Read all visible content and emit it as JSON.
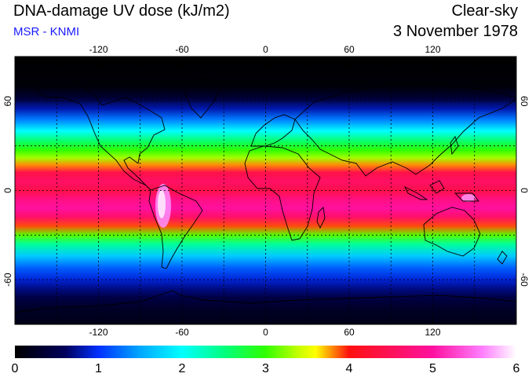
{
  "header": {
    "title": "DNA-damage UV dose (kJ/m2)",
    "subtitle": "MSR - KNMI",
    "sky_condition": "Clear-sky",
    "date": "3 November 1978"
  },
  "map": {
    "projection": "equirectangular",
    "lon_range": [
      -180,
      180
    ],
    "lat_range": [
      -90,
      90
    ],
    "lon_ticks": [
      -120,
      -60,
      0,
      60,
      120
    ],
    "lat_ticks": [
      60,
      0,
      -60
    ],
    "lon_tick_labels": [
      "-120",
      "-60",
      "0",
      "60",
      "120"
    ],
    "lat_tick_labels": [
      "60",
      "0",
      "-60"
    ],
    "grid_lon_lines": [
      -150,
      -120,
      -90,
      -60,
      -30,
      0,
      30,
      60,
      90,
      120,
      150
    ],
    "grid_lat_lines": [
      60,
      30,
      0,
      -30,
      -60
    ],
    "grid": "dotted"
  },
  "colorbar": {
    "min": 0,
    "max": 6,
    "tick_values": [
      0,
      1,
      2,
      3,
      4,
      5,
      6
    ],
    "tick_labels": [
      "0",
      "1",
      "2",
      "3",
      "4",
      "5",
      "6"
    ],
    "color_stops": [
      {
        "value": 0.0,
        "color": "#000000"
      },
      {
        "value": 0.6,
        "color": "#00005a"
      },
      {
        "value": 1.0,
        "color": "#0030ff"
      },
      {
        "value": 1.5,
        "color": "#00a8ff"
      },
      {
        "value": 2.0,
        "color": "#00ffff"
      },
      {
        "value": 2.5,
        "color": "#00ff80"
      },
      {
        "value": 3.0,
        "color": "#30ff00"
      },
      {
        "value": 3.4,
        "color": "#c8ff00"
      },
      {
        "value": 3.6,
        "color": "#ffff00"
      },
      {
        "value": 4.0,
        "color": "#ff1010"
      },
      {
        "value": 5.0,
        "color": "#ff10a0"
      },
      {
        "value": 5.6,
        "color": "#ff80ff"
      },
      {
        "value": 6.0,
        "color": "#ffffff"
      }
    ]
  }
}
